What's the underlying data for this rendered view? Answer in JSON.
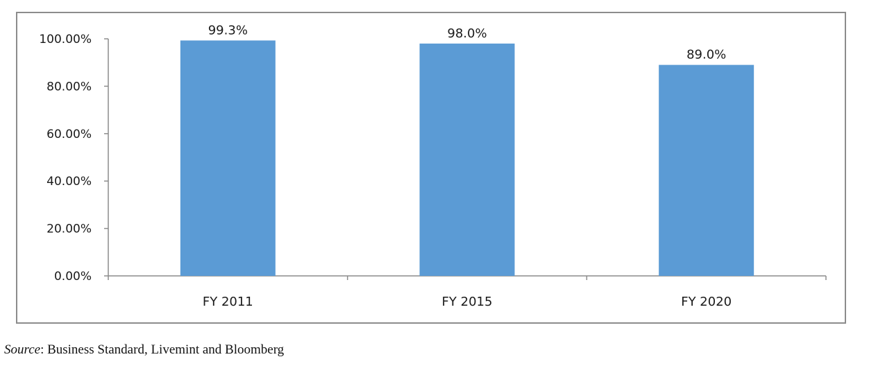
{
  "chart_data": {
    "type": "bar",
    "categories": [
      "FY 2011",
      "FY 2015",
      "FY 2020"
    ],
    "values": [
      99.3,
      98.0,
      89.0
    ],
    "data_labels": [
      "99.3%",
      "98.0%",
      "89.0%"
    ],
    "yticks": [
      "0.00%",
      "20.00%",
      "40.00%",
      "60.00%",
      "80.00%",
      "100.00%"
    ],
    "ylim": [
      0,
      100
    ],
    "grid": false,
    "bar_color": "#5b9bd5",
    "title": "",
    "xlabel": "",
    "ylabel": ""
  },
  "source": {
    "prefix": "Source",
    "text": ": Business Standard, Livemint and Bloomberg"
  }
}
